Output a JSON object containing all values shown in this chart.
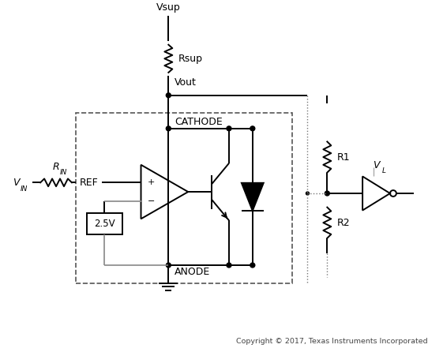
{
  "background_color": "#ffffff",
  "line_color": "#000000",
  "copyright_text": "Copyright © 2017, Texas Instruments Incorporated",
  "vsup_label": "Vsup",
  "rsup_label": "Rsup",
  "vout_label": "Vout",
  "cathode_label": "CATHODE",
  "anode_label": "ANODE",
  "ref_label": "REF",
  "rin_label": "R",
  "rin_sub": "IN",
  "vin_label": "V",
  "vin_sub": "IN",
  "v25_label": "2.5V",
  "r1_label": "R1",
  "r2_label": "R2",
  "vl_label": "V",
  "vl_sub": "L"
}
